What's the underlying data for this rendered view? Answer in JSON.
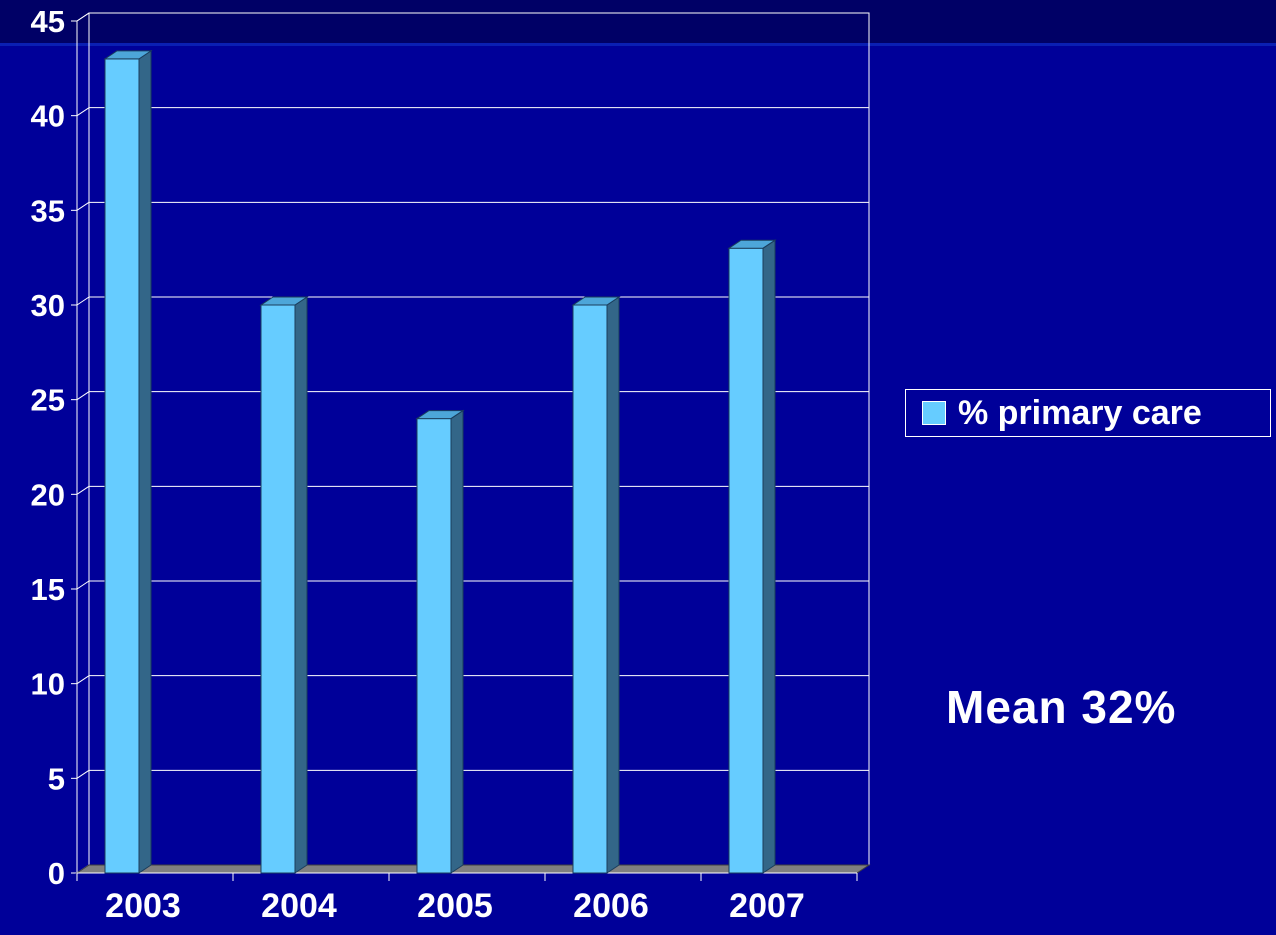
{
  "chart_data": {
    "type": "bar",
    "categories": [
      "2003",
      "2004",
      "2005",
      "2006",
      "2007"
    ],
    "series": [
      {
        "name": "% primary care",
        "values": [
          43,
          30,
          24,
          30,
          33
        ]
      }
    ],
    "ylim": [
      0,
      45
    ],
    "yticks": [
      "0",
      "5",
      "10",
      "15",
      "20",
      "25",
      "30",
      "35",
      "40",
      "45"
    ],
    "grid": true,
    "legend_position": "right",
    "style": "3d-column",
    "colors": {
      "background": "#000099",
      "bar_front": "#66ccff",
      "bar_side": "#336688",
      "bar_top": "#4da6d9",
      "floor": "#808080",
      "grid": "#ffffff",
      "text": "#ffffff"
    }
  },
  "annotation": {
    "mean_text": "Mean 32%"
  }
}
